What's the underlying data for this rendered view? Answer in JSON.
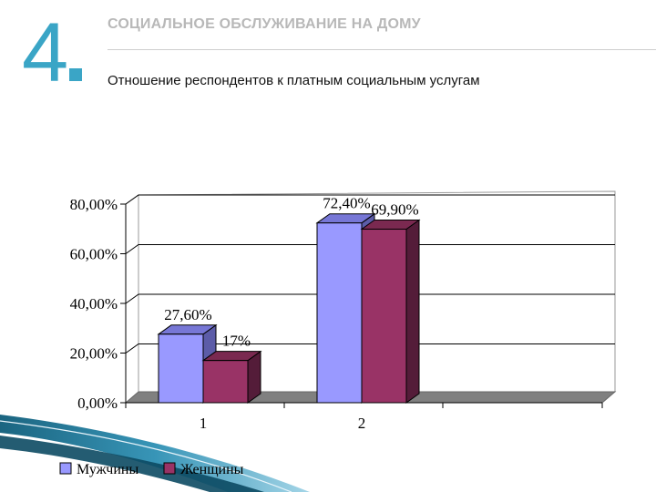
{
  "header": {
    "slide_number": "4",
    "title": "СОЦИАЛЬНОЕ ОБСЛУЖИВАНИЕ НА ДОМУ",
    "subtitle": "Отношение респондентов к платным социальным услугам"
  },
  "colors": {
    "accent": "#3aa5c6",
    "men": "#9999ff",
    "women": "#993366",
    "floor": "#808080"
  },
  "chart_data": {
    "type": "bar",
    "categories": [
      "1",
      "2"
    ],
    "series": [
      {
        "name": "Мужчины",
        "values": [
          27.6,
          72.4
        ],
        "labels": [
          "27,60%",
          "72,40%"
        ]
      },
      {
        "name": "Женщины",
        "values": [
          17,
          69.9
        ],
        "labels": [
          "17%",
          "69,90%"
        ]
      }
    ],
    "yticks": [
      "0,00%",
      "20,00%",
      "40,00%",
      "60,00%",
      "80,00%"
    ],
    "ylim": [
      0,
      80
    ],
    "grid": true,
    "legend": "bottom-left"
  }
}
